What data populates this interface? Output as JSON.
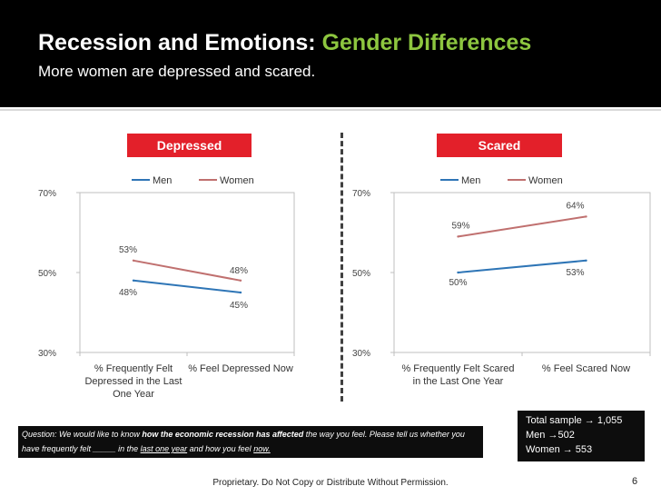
{
  "header": {
    "title_main": "Recession and Emotions:",
    "title_highlight": "Gender Differences",
    "subtitle": "More women are depressed and scared."
  },
  "colors": {
    "men": "#2e75b6",
    "women": "#c0706f",
    "badge": "#e3202a",
    "title_highlight": "#8dc63f"
  },
  "chart_data": [
    {
      "type": "line",
      "title": "Depressed",
      "categories": [
        "% Frequently Felt Depressed in the Last One Year",
        "% Feel Depressed Now"
      ],
      "category_lines": [
        [
          "% Frequently Felt",
          "Depressed in the Last",
          "One Year"
        ],
        [
          "% Feel Depressed Now"
        ]
      ],
      "series": [
        {
          "name": "Men",
          "values": [
            48,
            45
          ]
        },
        {
          "name": "Women",
          "values": [
            53,
            48
          ]
        }
      ],
      "data_labels": {
        "Men": [
          "48%",
          "45%"
        ],
        "Women": [
          "53%",
          "48%"
        ]
      },
      "yticks": [
        "30%",
        "50%",
        "70%"
      ],
      "ylim": [
        30,
        70
      ],
      "legend": "top"
    },
    {
      "type": "line",
      "title": "Scared",
      "categories": [
        "% Frequently Felt Scared in the Last One Year",
        "% Feel Scared Now"
      ],
      "category_lines": [
        [
          "% Frequently Felt Scared",
          "in the Last One Year"
        ],
        [
          "% Feel Scared Now"
        ]
      ],
      "series": [
        {
          "name": "Men",
          "values": [
            50,
            53
          ]
        },
        {
          "name": "Women",
          "values": [
            59,
            64
          ]
        }
      ],
      "data_labels": {
        "Men": [
          "50%",
          "53%"
        ],
        "Women": [
          "59%",
          "64%"
        ]
      },
      "yticks": [
        "30%",
        "50%",
        "70%"
      ],
      "ylim": [
        30,
        70
      ],
      "legend": "top"
    }
  ],
  "question": {
    "prefix": "Question:  We would like to know ",
    "bold": "how the economic recession has affected",
    "middle": " the way you feel.  Please tell us whether you have frequently felt _____ in the ",
    "underline1": "last one year",
    "and": " and how you feel ",
    "underline2": "now."
  },
  "sample": {
    "total": "Total sample → 1,055",
    "men": "Men →502",
    "women": "Women → 553"
  },
  "footer": "Proprietary.  Do Not Copy or Distribute Without Permission.",
  "page_number": "6"
}
